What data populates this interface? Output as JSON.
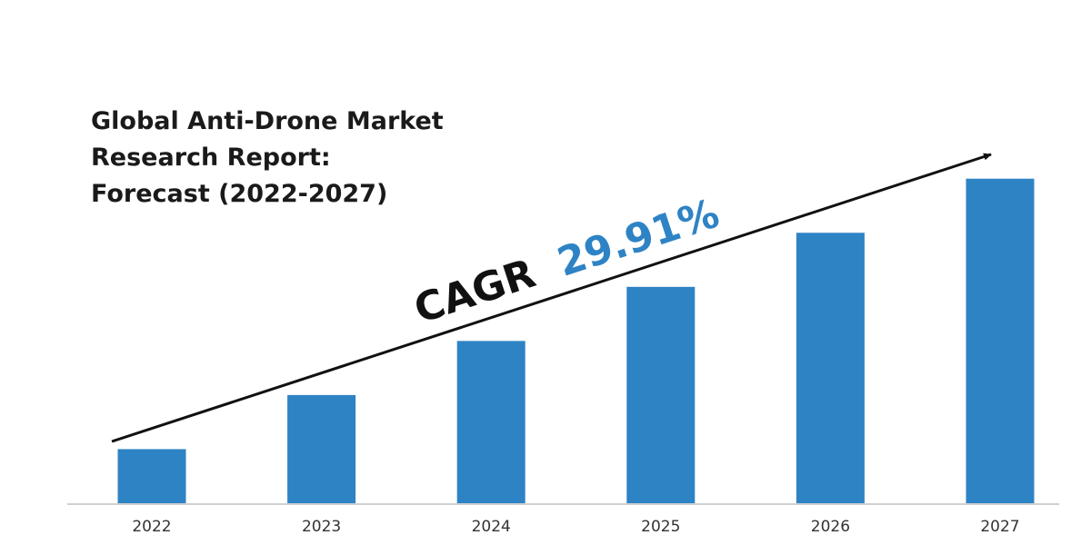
{
  "title_lines": [
    "Global Anti-Drone Market",
    "Research Report:",
    "Forecast (2022-2027)"
  ],
  "annotation": {
    "prefix": "CAGR",
    "value": "29.91%",
    "prefix_color": "#111111",
    "value_color": "#2e83c5",
    "arrow_icon": "trend-arrow-icon"
  },
  "colors": {
    "bar": "#2e83c5",
    "axis": "#d0d0d0"
  },
  "chart_data": {
    "type": "bar",
    "title": "Global Anti-Drone Market Research Report: Forecast (2022-2027)",
    "categories": [
      "2022",
      "2023",
      "2024",
      "2025",
      "2026",
      "2027"
    ],
    "values": [
      1.0,
      2.0,
      3.0,
      4.0,
      5.0,
      6.0
    ],
    "ylim": [
      0,
      6.6
    ],
    "grid": false,
    "legend": "none",
    "xlabel": "",
    "ylabel": ""
  }
}
